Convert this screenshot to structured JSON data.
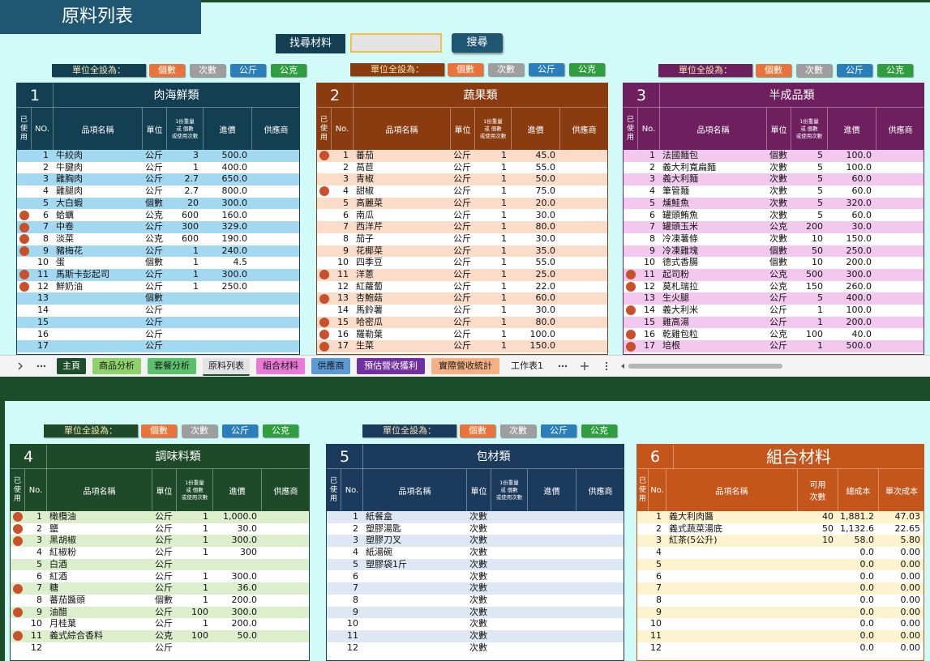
{
  "header": {
    "title": "原料列表",
    "search_label": "找尋材料",
    "search_button": "搜尋"
  },
  "tables": [
    {
      "number": "1",
      "title": "肉海鮮類",
      "color": "#123f52",
      "stripe": "#a3d8f1",
      "unit_bar": {
        "label": "單位全設為：",
        "buttons": [
          "個數",
          "次數",
          "公斤",
          "公克"
        ]
      },
      "headers": {
        "used": "已使用",
        "no": "NO.",
        "name": "品項名稱",
        "unit": "單位",
        "qty": "1份重量\n或 個數\n或使用次數",
        "price": "進價",
        "supplier": "供應商"
      },
      "rows": [
        {
          "no": "1",
          "name": "牛絞肉",
          "unit": "公斤",
          "qty": "3",
          "price": "500.0"
        },
        {
          "no": "2",
          "name": "牛腱肉",
          "unit": "公斤",
          "qty": "1",
          "price": "400.0"
        },
        {
          "no": "3",
          "name": "雞胸肉",
          "unit": "公斤",
          "qty": "2.7",
          "price": "650.0"
        },
        {
          "no": "4",
          "name": "雞腿肉",
          "unit": "公斤",
          "qty": "2.7",
          "price": "800.0"
        },
        {
          "no": "5",
          "name": "大白蝦",
          "unit": "個數",
          "qty": "20",
          "price": "300.0"
        },
        {
          "used": true,
          "no": "6",
          "name": "蛤蠣",
          "unit": "公克",
          "qty": "600",
          "price": "160.0"
        },
        {
          "used": true,
          "no": "7",
          "name": "中卷",
          "unit": "公斤",
          "qty": "300",
          "price": "329.0"
        },
        {
          "used": true,
          "no": "8",
          "name": "淡菜",
          "unit": "公克",
          "qty": "600",
          "price": "190.0"
        },
        {
          "used": true,
          "no": "9",
          "name": "豬梅花",
          "unit": "公斤",
          "qty": "1",
          "price": "240.0"
        },
        {
          "no": "10",
          "name": "蛋",
          "unit": "個數",
          "qty": "1",
          "price": "4.5"
        },
        {
          "used": true,
          "no": "11",
          "name": "馬斯卡彭起司",
          "unit": "公斤",
          "qty": "1",
          "price": "300.0"
        },
        {
          "used": true,
          "no": "12",
          "name": "鮮奶油",
          "unit": "公斤",
          "qty": "1",
          "price": "250.0"
        },
        {
          "no": "13",
          "unit": "個數"
        },
        {
          "no": "14",
          "unit": "公斤"
        },
        {
          "no": "15",
          "unit": "公斤"
        },
        {
          "no": "16",
          "unit": "公斤"
        },
        {
          "no": "17",
          "unit": "公斤"
        }
      ]
    },
    {
      "number": "2",
      "title": "蔬果類",
      "color": "#8a3b10",
      "stripe": "#fbdcc9",
      "unit_bar": {
        "label": "單位全設為：",
        "buttons": [
          "個數",
          "次數",
          "公斤",
          "公克"
        ]
      },
      "headers": {
        "used": "已使用",
        "no": "No.",
        "name": "品項名稱",
        "unit": "單位",
        "qty": "1份重量\n或 個數\n或使用次數",
        "price": "進價",
        "supplier": "供應商"
      },
      "rows": [
        {
          "used": true,
          "no": "1",
          "name": "蕃茄",
          "unit": "公斤",
          "qty": "1",
          "price": "45.0"
        },
        {
          "no": "2",
          "name": "萵苣",
          "unit": "公斤",
          "qty": "1",
          "price": "55.0"
        },
        {
          "no": "3",
          "name": "青椒",
          "unit": "公斤",
          "qty": "1",
          "price": "50.0"
        },
        {
          "used": true,
          "no": "4",
          "name": "甜椒",
          "unit": "公斤",
          "qty": "1",
          "price": "75.0"
        },
        {
          "no": "5",
          "name": "高麗菜",
          "unit": "公斤",
          "qty": "1",
          "price": "20.0"
        },
        {
          "no": "6",
          "name": "南瓜",
          "unit": "公斤",
          "qty": "1",
          "price": "30.0"
        },
        {
          "no": "7",
          "name": "西洋芹",
          "unit": "公斤",
          "qty": "1",
          "price": "80.0"
        },
        {
          "no": "8",
          "name": "茄子",
          "unit": "公斤",
          "qty": "1",
          "price": "30.0"
        },
        {
          "no": "9",
          "name": "花椰菜",
          "unit": "公斤",
          "qty": "1",
          "price": "35.0"
        },
        {
          "no": "10",
          "name": "四季豆",
          "unit": "公斤",
          "qty": "1",
          "price": "55.0"
        },
        {
          "used": true,
          "no": "11",
          "name": "洋蔥",
          "unit": "公斤",
          "qty": "1",
          "price": "25.0"
        },
        {
          "no": "12",
          "name": "紅蘿蔔",
          "unit": "公斤",
          "qty": "1",
          "price": "22.0"
        },
        {
          "used": true,
          "no": "13",
          "name": "杏鮑菇",
          "unit": "公斤",
          "qty": "1",
          "price": "60.0"
        },
        {
          "no": "14",
          "name": "馬鈴薯",
          "unit": "公斤",
          "qty": "1",
          "price": "30.0"
        },
        {
          "used": true,
          "no": "15",
          "name": "哈密瓜",
          "unit": "公斤",
          "qty": "1",
          "price": "80.0"
        },
        {
          "used": true,
          "no": "16",
          "name": "羅勒葉",
          "unit": "公斤",
          "qty": "1",
          "price": "100.0"
        },
        {
          "used": true,
          "no": "17",
          "name": "生菜",
          "unit": "公斤",
          "qty": "1",
          "price": "150.0"
        }
      ]
    },
    {
      "number": "3",
      "title": "半成品類",
      "color": "#6d1f5e",
      "stripe": "#f3c8ef",
      "unit_bar": {
        "label": "單位全設為：",
        "buttons": [
          "個數",
          "次數",
          "公斤",
          "公克"
        ]
      },
      "headers": {
        "used": "已使用",
        "no": "No.",
        "name": "品項名稱",
        "unit": "單位",
        "qty": "1份重量\n或 個數\n或使用次數",
        "price": "進價",
        "supplier": "供應商"
      },
      "rows": [
        {
          "no": "1",
          "name": "法國麵包",
          "unit": "個數",
          "qty": "5",
          "price": "100.0"
        },
        {
          "no": "2",
          "name": "義大利寬扁麵",
          "unit": "次數",
          "qty": "5",
          "price": "100.0"
        },
        {
          "no": "3",
          "name": "義大利麵",
          "unit": "次數",
          "qty": "5",
          "price": "60.0"
        },
        {
          "no": "4",
          "name": "筆管麵",
          "unit": "次數",
          "qty": "5",
          "price": "60.0"
        },
        {
          "no": "5",
          "name": "燻鮭魚",
          "unit": "次數",
          "qty": "5",
          "price": "320.0"
        },
        {
          "no": "6",
          "name": "罐頭鮪魚",
          "unit": "次數",
          "qty": "5",
          "price": "60.0"
        },
        {
          "no": "7",
          "name": "罐頭玉米",
          "unit": "公克",
          "qty": "200",
          "price": "30.0"
        },
        {
          "no": "8",
          "name": "冷凍薯條",
          "unit": "次數",
          "qty": "10",
          "price": "150.0"
        },
        {
          "no": "9",
          "name": "冷凍雞塊",
          "unit": "個數",
          "qty": "50",
          "price": "250.0"
        },
        {
          "no": "10",
          "name": "德式香腸",
          "unit": "個數",
          "qty": "10",
          "price": "200.0"
        },
        {
          "used": true,
          "no": "11",
          "name": "起司粉",
          "unit": "公克",
          "qty": "500",
          "price": "300.0"
        },
        {
          "used": true,
          "no": "12",
          "name": "莫札瑞拉",
          "unit": "公克",
          "qty": "150",
          "price": "260.0"
        },
        {
          "no": "13",
          "name": "生火腿",
          "unit": "公斤",
          "qty": "5",
          "price": "400.0"
        },
        {
          "used": true,
          "no": "14",
          "name": "義大利米",
          "unit": "公斤",
          "qty": "1",
          "price": "100.0"
        },
        {
          "no": "15",
          "name": "雞高湯",
          "unit": "公斤",
          "qty": "1",
          "price": "200.0"
        },
        {
          "used": true,
          "no": "16",
          "name": "乾雞包粒",
          "unit": "公克",
          "qty": "100",
          "price": "40.0"
        },
        {
          "used": true,
          "no": "17",
          "name": "培根",
          "unit": "公斤",
          "qty": "1",
          "price": "500.0"
        }
      ]
    },
    {
      "number": "4",
      "title": "調味料類",
      "color": "#1f4a2a",
      "stripe": "#dcefcd",
      "unit_bar": {
        "label": "單位全設為：",
        "buttons": [
          "個數",
          "次數",
          "公斤",
          "公克"
        ]
      },
      "headers": {
        "used": "已使用",
        "no": "No.",
        "name": "品項名稱",
        "unit": "單位",
        "qty": "1份重量\n或 個數\n或使用次數",
        "price": "進價",
        "supplier": "供應商"
      },
      "rows": [
        {
          "used": true,
          "no": "1",
          "name": "橄欖油",
          "unit": "公斤",
          "qty": "1",
          "price": "1,000.0"
        },
        {
          "used": true,
          "no": "2",
          "name": "鹽",
          "unit": "公斤",
          "qty": "1",
          "price": "30.0"
        },
        {
          "used": true,
          "no": "3",
          "name": "黑胡椒",
          "unit": "公斤",
          "qty": "1",
          "price": "300.0"
        },
        {
          "no": "4",
          "name": "紅椒粉",
          "unit": "公斤",
          "qty": "1",
          "price": "300"
        },
        {
          "no": "5",
          "name": "白酒",
          "unit": "公斤"
        },
        {
          "no": "6",
          "name": "紅酒",
          "unit": "公斤",
          "qty": "1",
          "price": "300.0"
        },
        {
          "used": true,
          "no": "7",
          "name": "糖",
          "unit": "公斤",
          "qty": "1",
          "price": "36.0"
        },
        {
          "no": "8",
          "name": "蕃茄醬頭",
          "unit": "個數",
          "qty": "1",
          "price": "200.0"
        },
        {
          "used": true,
          "no": "9",
          "name": "油醋",
          "unit": "公斤",
          "qty": "100",
          "price": "300.0"
        },
        {
          "no": "10",
          "name": "月桂葉",
          "unit": "公斤",
          "qty": "1",
          "price": "200.0"
        },
        {
          "used": true,
          "no": "11",
          "name": "義式綜合香料",
          "unit": "公克",
          "qty": "100",
          "price": "50.0"
        },
        {
          "no": "12",
          "unit": "公斤"
        }
      ]
    },
    {
      "number": "5",
      "title": "包材類",
      "color": "#1b3a5c",
      "stripe": "#dde8f4",
      "unit_bar": {
        "label": "單位全設為：",
        "buttons": [
          "個數",
          "次數",
          "公斤",
          "公克"
        ]
      },
      "headers": {
        "used": "已使用",
        "no": "No.",
        "name": "品項名稱",
        "unit": "單位",
        "qty": "1份重量\n或 個數\n或使用次數",
        "price": "進價",
        "supplier": "供應商"
      },
      "rows": [
        {
          "no": "1",
          "name": "紙餐盒",
          "unit": "次數"
        },
        {
          "no": "2",
          "name": "塑膠湯匙",
          "unit": "次數"
        },
        {
          "no": "3",
          "name": "塑膠刀叉",
          "unit": "次數"
        },
        {
          "no": "4",
          "name": "紙湯碗",
          "unit": "次數"
        },
        {
          "no": "5",
          "name": "塑膠袋1斤",
          "unit": "次數"
        },
        {
          "no": "6",
          "unit": "次數"
        },
        {
          "no": "7",
          "unit": "次數"
        },
        {
          "no": "8",
          "unit": "次數"
        },
        {
          "no": "9",
          "unit": "次數"
        },
        {
          "no": "10",
          "unit": "次數"
        },
        {
          "no": "11",
          "unit": "次數"
        },
        {
          "no": "12",
          "unit": "次數"
        }
      ]
    },
    {
      "number": "6",
      "title": "組合材料",
      "color": "#c4561c",
      "stripe": "#fdf3cf",
      "headers": {
        "used": "已使用",
        "no": "No.",
        "name": "品項名稱",
        "uses": "可用\n次數",
        "total": "總成本",
        "unit_cost": "單次成本"
      },
      "rows": [
        {
          "no": "1",
          "name": "義大利肉醬",
          "uses": "40",
          "total": "1,881.2",
          "unit_cost": "47.03"
        },
        {
          "no": "2",
          "name": "義式蔬菜湯底",
          "uses": "50",
          "total": "1,132.6",
          "unit_cost": "22.65"
        },
        {
          "no": "3",
          "name": "紅茶(5公升)",
          "uses": "10",
          "total": "58.0",
          "unit_cost": "5.80"
        },
        {
          "no": "4",
          "total": "0.0",
          "unit_cost": "0.00"
        },
        {
          "no": "5",
          "total": "0.0",
          "unit_cost": "0.00"
        },
        {
          "no": "6",
          "total": "0.0",
          "unit_cost": "0.00"
        },
        {
          "no": "7",
          "total": "0.0",
          "unit_cost": "0.00"
        },
        {
          "no": "8",
          "total": "0.0",
          "unit_cost": "0.00"
        },
        {
          "no": "9",
          "total": "0.0",
          "unit_cost": "0.00"
        },
        {
          "no": "10",
          "total": "0.0",
          "unit_cost": "0.00"
        },
        {
          "no": "11",
          "total": "0.0",
          "unit_cost": "0.00"
        },
        {
          "no": "12",
          "total": "0.0",
          "unit_cost": "0.00"
        }
      ]
    }
  ],
  "tabs": [
    {
      "label": "主頁",
      "color": "#1e4d2b",
      "text": "#ffffff"
    },
    {
      "label": "商品分析",
      "color": "#8fd16a",
      "text": "#1a1a1a"
    },
    {
      "label": "套餐分析",
      "color": "#5bc06a",
      "text": "#1a1a1a"
    },
    {
      "label": "原料列表",
      "color": "#e3e3e3",
      "text": "#1a1a1a"
    },
    {
      "label": "組合材料",
      "color": "#e87ad6",
      "text": "#1a1a1a"
    },
    {
      "label": "供應商",
      "color": "#5b9bd5",
      "text": "#1a1a1a"
    },
    {
      "label": "預估營收獲利",
      "color": "#7030a0",
      "text": "#ffffff"
    },
    {
      "label": "實際營收統計",
      "color": "#f4b183",
      "text": "#1a1a1a"
    },
    {
      "label": "工作表1",
      "color": "#f3f3f3",
      "text": "#1a1a1a"
    }
  ]
}
